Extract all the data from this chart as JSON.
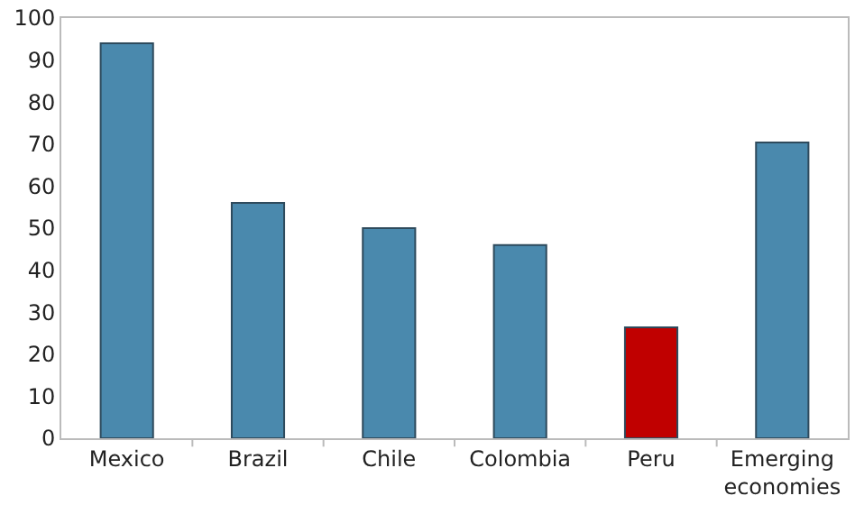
{
  "chart_data": {
    "type": "bar",
    "categories": [
      "Mexico",
      "Brazil",
      "Chile",
      "Colombia",
      "Peru",
      "Emerging economies"
    ],
    "values": [
      94,
      56,
      50,
      46,
      26.4,
      70.4
    ],
    "colors": [
      "#4a89ad",
      "#4a89ad",
      "#4a89ad",
      "#4a89ad",
      "#c00000",
      "#4a89ad"
    ],
    "ylim": [
      0,
      100
    ],
    "yticks": [
      0,
      10,
      20,
      30,
      40,
      50,
      60,
      70,
      80,
      90,
      100
    ],
    "grid": false
  }
}
